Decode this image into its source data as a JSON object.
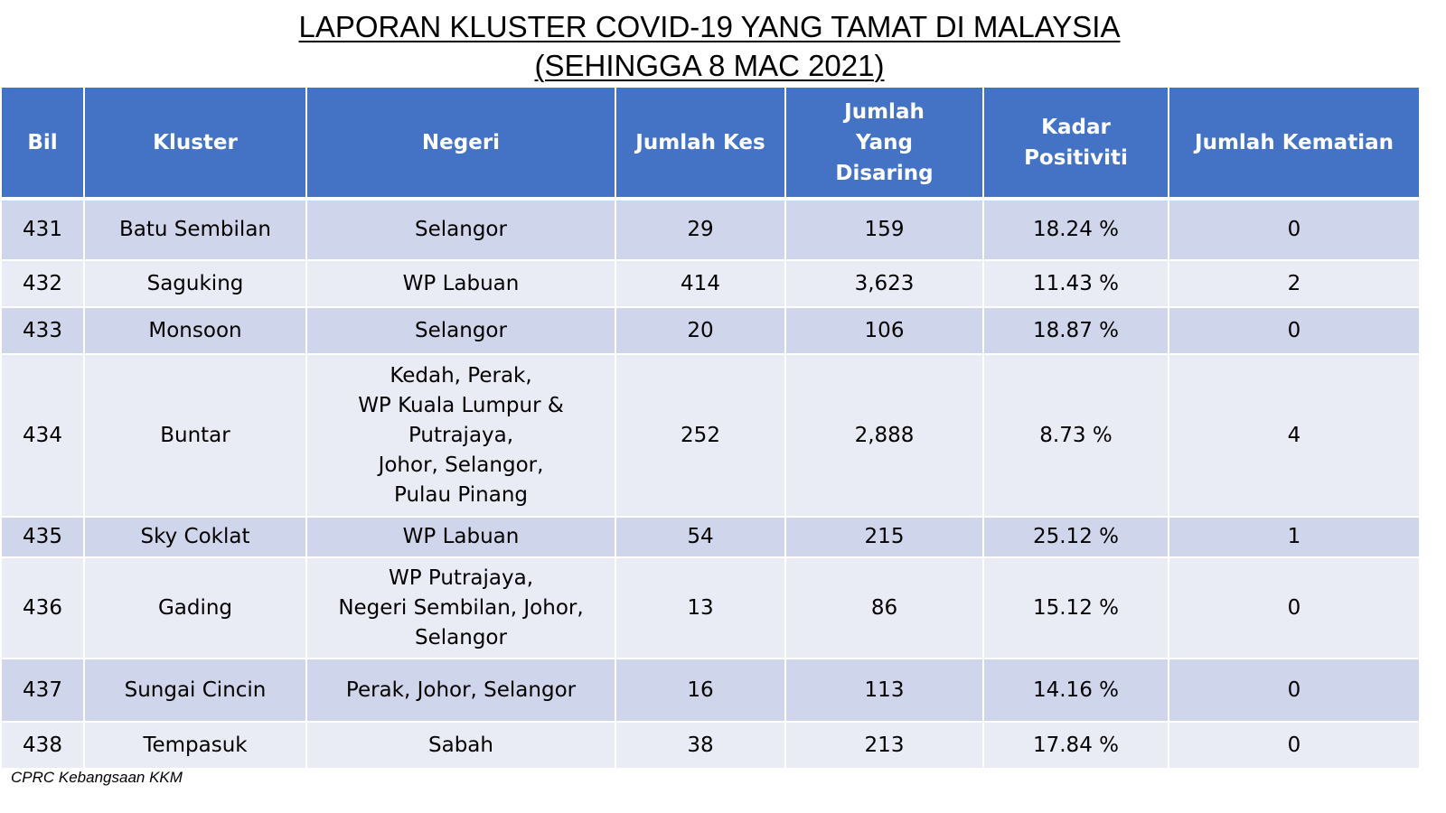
{
  "title": {
    "line1": "LAPORAN KLUSTER COVID-19 YANG TAMAT DI MALAYSIA",
    "line2": "(SEHINGGA 8 MAC 2021)"
  },
  "table": {
    "headers": {
      "bil": "Bil",
      "kluster": "Kluster",
      "negeri": "Negeri",
      "jumlah_kes": "Jumlah Kes",
      "jumlah_disaring": "Jumlah Yang Disaring",
      "kadar_positiviti": "Kadar Positiviti",
      "jumlah_kematian": "Jumlah Kematian"
    },
    "rows": [
      {
        "bil": "431",
        "kluster": "Batu Sembilan",
        "negeri": [
          "Selangor"
        ],
        "kes": "29",
        "disaring": "159",
        "positiviti": "18.24 %",
        "kematian": "0"
      },
      {
        "bil": "432",
        "kluster": "Saguking",
        "negeri": [
          "WP Labuan"
        ],
        "kes": "414",
        "disaring": "3,623",
        "positiviti": "11.43 %",
        "kematian": "2"
      },
      {
        "bil": "433",
        "kluster": "Monsoon",
        "negeri": [
          "Selangor"
        ],
        "kes": "20",
        "disaring": "106",
        "positiviti": "18.87 %",
        "kematian": "0"
      },
      {
        "bil": "434",
        "kluster": "Buntar",
        "negeri": [
          "Kedah, Perak,",
          "WP Kuala Lumpur & Putrajaya,",
          "Johor, Selangor,",
          "Pulau Pinang"
        ],
        "kes": "252",
        "disaring": "2,888",
        "positiviti": "8.73 %",
        "kematian": "4"
      },
      {
        "bil": "435",
        "kluster": "Sky Coklat",
        "negeri": [
          "WP Labuan"
        ],
        "kes": "54",
        "disaring": "215",
        "positiviti": "25.12 %",
        "kematian": "1"
      },
      {
        "bil": "436",
        "kluster": "Gading",
        "negeri": [
          "WP Putrajaya,",
          "Negeri Sembilan, Johor,",
          "Selangor"
        ],
        "kes": "13",
        "disaring": "86",
        "positiviti": "15.12 %",
        "kematian": "0"
      },
      {
        "bil": "437",
        "kluster": "Sungai Cincin",
        "negeri": [
          "Perak, Johor, Selangor"
        ],
        "kes": "16",
        "disaring": "113",
        "positiviti": "14.16 %",
        "kematian": "0"
      },
      {
        "bil": "438",
        "kluster": "Tempasuk",
        "negeri": [
          "Sabah"
        ],
        "kes": "38",
        "disaring": "213",
        "positiviti": "17.84 %",
        "kematian": "0"
      }
    ]
  },
  "footer": "CPRC Kebangsaan KKM",
  "colors": {
    "header_bg": "#4472c4",
    "row_odd_bg": "#cfd5ea",
    "row_even_bg": "#e9ebf5"
  }
}
